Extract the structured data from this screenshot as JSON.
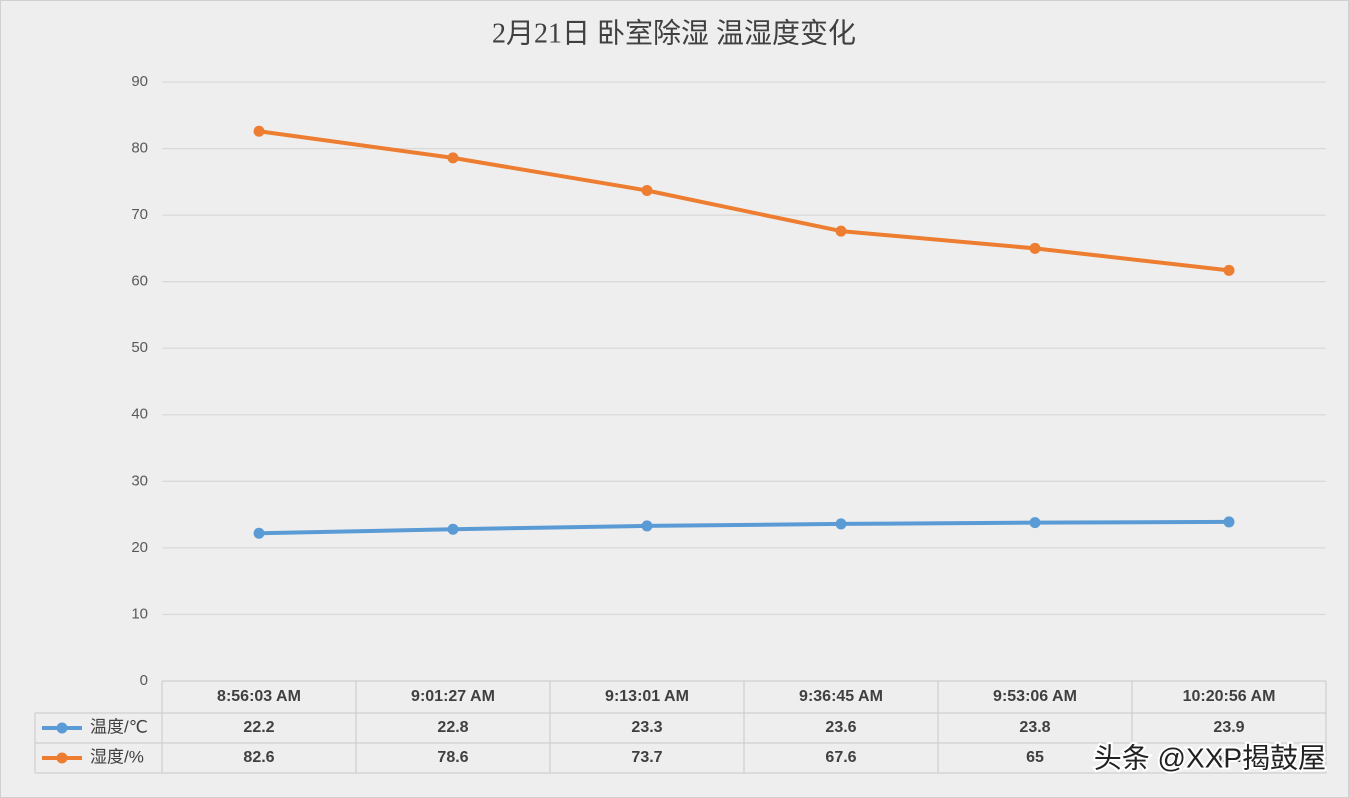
{
  "chart_data": {
    "type": "line",
    "title": "2月21日 卧室除湿 温湿度变化",
    "categories": [
      "8:56:03 AM",
      "9:01:27 AM",
      "9:13:01 AM",
      "9:36:45 AM",
      "9:53:06 AM",
      "10:20:56 AM"
    ],
    "series": [
      {
        "name": "温度/℃",
        "color": "#5b9bd5",
        "values": [
          22.2,
          22.8,
          23.3,
          23.6,
          23.8,
          23.9
        ]
      },
      {
        "name": "湿度/%",
        "color": "#ed7d31",
        "values": [
          82.6,
          78.6,
          73.7,
          67.6,
          65,
          61.7
        ]
      }
    ],
    "ylim": [
      0,
      90
    ],
    "yticks": [
      0,
      10,
      20,
      30,
      40,
      50,
      60,
      70,
      80,
      90
    ],
    "grid": true,
    "data_table": true,
    "watermark": "头条 @XXP揭鼓屋"
  }
}
